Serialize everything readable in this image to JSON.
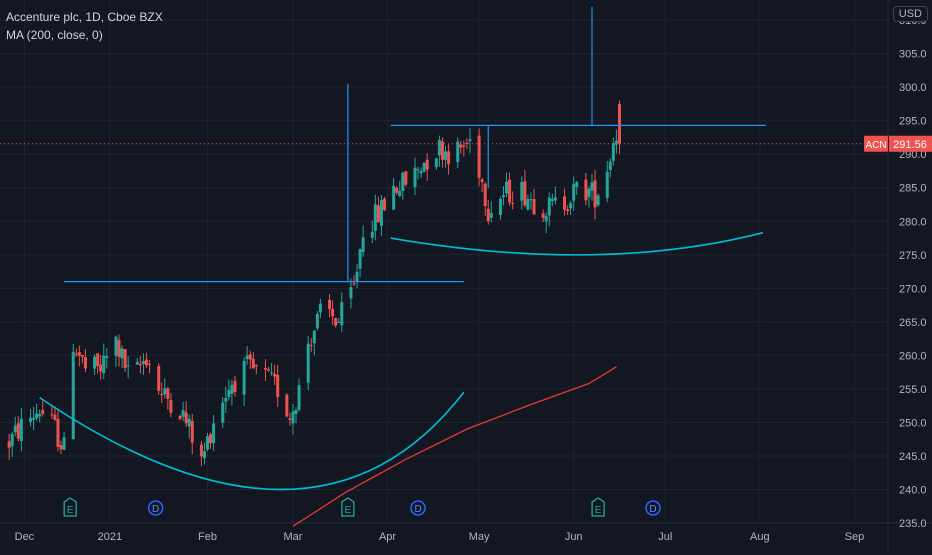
{
  "header": {
    "title": "Accenture plc, 1D, Cboe BZX",
    "indicator": "MA (200, close, 0)"
  },
  "axis": {
    "currency": "USD",
    "last_price_label": "291.56",
    "ticker_label": "ACN"
  },
  "colors": {
    "background": "#131722",
    "grid": "#1f2330",
    "up": "#26a69a",
    "down": "#ef5350",
    "ma": "#e53935",
    "trendline": "#2196f3",
    "arc": "#00bcd4",
    "event_earnings": "#26a69a",
    "event_dividend": "#2962ff"
  },
  "chart_data": {
    "type": "candlestick",
    "title": "Accenture plc, 1D, Cboe BZX",
    "ylim": [
      235,
      313
    ],
    "y_ticks": [
      235,
      240,
      245,
      250,
      255,
      260,
      265,
      270,
      275,
      280,
      285,
      290,
      295,
      300,
      305,
      310
    ],
    "x_ticks": [
      "Dec",
      "2021",
      "Feb",
      "Mar",
      "Apr",
      "May",
      "Jun",
      "Jul",
      "Aug",
      "Sep"
    ],
    "x_tick_days": [
      5,
      33,
      65,
      93,
      124,
      154,
      185,
      215,
      246,
      277
    ],
    "last_price": 291.56,
    "candles_seed": [
      {
        "d": 0,
        "p": 247
      },
      {
        "d": 5,
        "p": 250
      },
      {
        "d": 10,
        "p": 252
      },
      {
        "d": 15,
        "p": 249
      },
      {
        "d": 18,
        "p": 246
      },
      {
        "d": 20,
        "p": 263
      },
      {
        "d": 25,
        "p": 258
      },
      {
        "d": 30,
        "p": 258
      },
      {
        "d": 35,
        "p": 262
      },
      {
        "d": 40,
        "p": 256
      },
      {
        "d": 45,
        "p": 260
      },
      {
        "d": 50,
        "p": 254
      },
      {
        "d": 55,
        "p": 253
      },
      {
        "d": 60,
        "p": 248
      },
      {
        "d": 63,
        "p": 244
      },
      {
        "d": 68,
        "p": 252
      },
      {
        "d": 73,
        "p": 256
      },
      {
        "d": 78,
        "p": 258
      },
      {
        "d": 83,
        "p": 257
      },
      {
        "d": 88,
        "p": 255
      },
      {
        "d": 92,
        "p": 251
      },
      {
        "d": 95,
        "p": 255
      },
      {
        "d": 98,
        "p": 262
      },
      {
        "d": 103,
        "p": 267
      },
      {
        "d": 108,
        "p": 265
      },
      {
        "d": 113,
        "p": 270
      },
      {
        "d": 116,
        "p": 279
      },
      {
        "d": 121,
        "p": 281
      },
      {
        "d": 126,
        "p": 285
      },
      {
        "d": 131,
        "p": 286
      },
      {
        "d": 136,
        "p": 289
      },
      {
        "d": 141,
        "p": 291
      },
      {
        "d": 146,
        "p": 290
      },
      {
        "d": 151,
        "p": 292
      },
      {
        "d": 154,
        "p": 288
      },
      {
        "d": 157,
        "p": 282
      },
      {
        "d": 162,
        "p": 284
      },
      {
        "d": 167,
        "p": 285
      },
      {
        "d": 172,
        "p": 283
      },
      {
        "d": 177,
        "p": 282
      },
      {
        "d": 182,
        "p": 283
      },
      {
        "d": 187,
        "p": 285
      },
      {
        "d": 192,
        "p": 284
      },
      {
        "d": 195,
        "p": 286
      },
      {
        "d": 198,
        "p": 292
      },
      {
        "d": 199,
        "p": 293
      }
    ],
    "ma_line": [
      {
        "d": 93,
        "p": 234.5
      },
      {
        "d": 110,
        "p": 239.5
      },
      {
        "d": 130,
        "p": 244.5
      },
      {
        "d": 150,
        "p": 249
      },
      {
        "d": 170,
        "p": 252.5
      },
      {
        "d": 190,
        "p": 255.8
      },
      {
        "d": 199,
        "p": 258.3
      }
    ],
    "drawings": {
      "hlines": [
        {
          "d1": 18,
          "d2": 149,
          "p": 271
        },
        {
          "d1": 125,
          "d2": 248,
          "p": 294.3
        }
      ],
      "vlines": [
        {
          "d": 111,
          "p1": 271,
          "p2": 300.5
        },
        {
          "d": 157,
          "p1": 285,
          "p2": 294.3
        },
        {
          "d": 191,
          "p1": 294.3,
          "p2": 312
        }
      ],
      "arcs": [
        {
          "points": [
            {
              "d": 10,
              "p": 253.7
            },
            {
              "d": 90,
              "p": 240
            },
            {
              "d": 149,
              "p": 254.5
            }
          ]
        },
        {
          "points": [
            {
              "d": 125,
              "p": 277.5
            },
            {
              "d": 190,
              "p": 275
            },
            {
              "d": 247,
              "p": 278.3
            }
          ]
        }
      ]
    },
    "events": [
      {
        "d": 20,
        "kind": "earnings",
        "label": "E"
      },
      {
        "d": 48,
        "kind": "dividend",
        "label": "D"
      },
      {
        "d": 111,
        "kind": "earnings",
        "label": "E"
      },
      {
        "d": 134,
        "kind": "dividend",
        "label": "D"
      },
      {
        "d": 193,
        "kind": "earnings",
        "label": "E"
      },
      {
        "d": 211,
        "kind": "dividend",
        "label": "D"
      }
    ]
  }
}
